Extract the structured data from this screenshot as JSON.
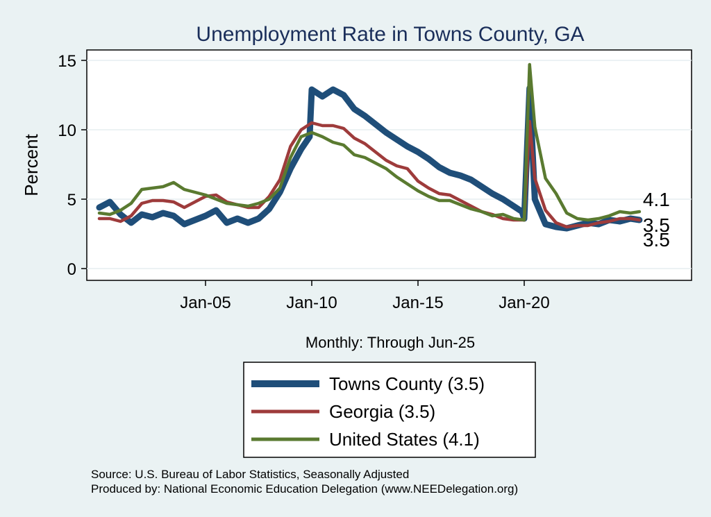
{
  "chart_data": {
    "type": "line",
    "title": "Unemployment Rate in Towns  County, GA",
    "ylabel": "Percent",
    "xlabel": "Monthly: Through Jun-25",
    "ylim": [
      0,
      15
    ],
    "yticks": [
      0,
      5,
      10,
      15
    ],
    "xlim": [
      2000.0,
      2028.0
    ],
    "xticks": [
      {
        "x": 2005.0,
        "label": "Jan-05"
      },
      {
        "x": 2010.0,
        "label": "Jan-10"
      },
      {
        "x": 2015.0,
        "label": "Jan-15"
      },
      {
        "x": 2020.0,
        "label": "Jan-20"
      }
    ],
    "grid": true,
    "legend_position": "bottom",
    "series": [
      {
        "name": "Towns  County (3.5)",
        "color": "#1f4e79",
        "end_label": "3.5",
        "points": [
          [
            2000.0,
            4.4
          ],
          [
            2000.5,
            4.8
          ],
          [
            2001.0,
            3.9
          ],
          [
            2001.5,
            3.3
          ],
          [
            2002.0,
            3.9
          ],
          [
            2002.5,
            3.7
          ],
          [
            2003.0,
            4.0
          ],
          [
            2003.5,
            3.8
          ],
          [
            2004.0,
            3.2
          ],
          [
            2004.5,
            3.5
          ],
          [
            2005.0,
            3.8
          ],
          [
            2005.5,
            4.2
          ],
          [
            2006.0,
            3.3
          ],
          [
            2006.5,
            3.6
          ],
          [
            2007.0,
            3.3
          ],
          [
            2007.5,
            3.6
          ],
          [
            2008.0,
            4.3
          ],
          [
            2008.5,
            5.5
          ],
          [
            2009.0,
            7.2
          ],
          [
            2009.5,
            8.6
          ],
          [
            2009.9,
            9.5
          ],
          [
            2010.0,
            12.9
          ],
          [
            2010.5,
            12.4
          ],
          [
            2011.0,
            12.9
          ],
          [
            2011.5,
            12.5
          ],
          [
            2012.0,
            11.5
          ],
          [
            2012.5,
            11.0
          ],
          [
            2013.0,
            10.4
          ],
          [
            2013.5,
            9.8
          ],
          [
            2014.0,
            9.3
          ],
          [
            2014.5,
            8.8
          ],
          [
            2015.0,
            8.4
          ],
          [
            2015.5,
            7.9
          ],
          [
            2016.0,
            7.3
          ],
          [
            2016.5,
            6.9
          ],
          [
            2017.0,
            6.7
          ],
          [
            2017.5,
            6.4
          ],
          [
            2018.0,
            5.9
          ],
          [
            2018.5,
            5.4
          ],
          [
            2019.0,
            5.0
          ],
          [
            2019.5,
            4.5
          ],
          [
            2019.9,
            4.1
          ],
          [
            2020.0,
            3.6
          ],
          [
            2020.25,
            13.0
          ],
          [
            2020.5,
            5.0
          ],
          [
            2021.0,
            3.2
          ],
          [
            2021.5,
            3.0
          ],
          [
            2022.0,
            2.9
          ],
          [
            2022.5,
            3.1
          ],
          [
            2023.0,
            3.3
          ],
          [
            2023.5,
            3.2
          ],
          [
            2024.0,
            3.5
          ],
          [
            2024.5,
            3.4
          ],
          [
            2025.0,
            3.6
          ],
          [
            2025.42,
            3.5
          ]
        ]
      },
      {
        "name": "Georgia (3.5)",
        "color": "#9e3b3b",
        "end_label": "3.5",
        "points": [
          [
            2000.0,
            3.6
          ],
          [
            2000.5,
            3.6
          ],
          [
            2001.0,
            3.4
          ],
          [
            2001.5,
            3.8
          ],
          [
            2002.0,
            4.7
          ],
          [
            2002.5,
            4.9
          ],
          [
            2003.0,
            4.9
          ],
          [
            2003.5,
            4.8
          ],
          [
            2004.0,
            4.4
          ],
          [
            2004.5,
            4.8
          ],
          [
            2005.0,
            5.2
          ],
          [
            2005.5,
            5.3
          ],
          [
            2006.0,
            4.8
          ],
          [
            2006.5,
            4.6
          ],
          [
            2007.0,
            4.4
          ],
          [
            2007.5,
            4.4
          ],
          [
            2008.0,
            5.2
          ],
          [
            2008.5,
            6.4
          ],
          [
            2009.0,
            8.8
          ],
          [
            2009.5,
            10.0
          ],
          [
            2010.0,
            10.5
          ],
          [
            2010.5,
            10.3
          ],
          [
            2011.0,
            10.3
          ],
          [
            2011.5,
            10.1
          ],
          [
            2012.0,
            9.4
          ],
          [
            2012.5,
            9.0
          ],
          [
            2013.0,
            8.4
          ],
          [
            2013.5,
            7.8
          ],
          [
            2014.0,
            7.4
          ],
          [
            2014.5,
            7.2
          ],
          [
            2015.0,
            6.3
          ],
          [
            2015.5,
            5.8
          ],
          [
            2016.0,
            5.4
          ],
          [
            2016.5,
            5.3
          ],
          [
            2017.0,
            4.9
          ],
          [
            2017.5,
            4.5
          ],
          [
            2018.0,
            4.1
          ],
          [
            2018.5,
            3.9
          ],
          [
            2019.0,
            3.6
          ],
          [
            2019.5,
            3.5
          ],
          [
            2020.0,
            3.5
          ],
          [
            2020.25,
            10.6
          ],
          [
            2020.5,
            6.5
          ],
          [
            2021.0,
            4.2
          ],
          [
            2021.5,
            3.3
          ],
          [
            2022.0,
            3.0
          ],
          [
            2022.5,
            3.1
          ],
          [
            2023.0,
            3.1
          ],
          [
            2023.5,
            3.3
          ],
          [
            2024.0,
            3.4
          ],
          [
            2024.5,
            3.6
          ],
          [
            2025.0,
            3.6
          ],
          [
            2025.42,
            3.5
          ]
        ]
      },
      {
        "name": "United States (4.1)",
        "color": "#5a7a30",
        "end_label": "4.1",
        "points": [
          [
            2000.0,
            4.0
          ],
          [
            2000.5,
            3.9
          ],
          [
            2001.0,
            4.2
          ],
          [
            2001.5,
            4.7
          ],
          [
            2002.0,
            5.7
          ],
          [
            2002.5,
            5.8
          ],
          [
            2003.0,
            5.9
          ],
          [
            2003.5,
            6.2
          ],
          [
            2004.0,
            5.7
          ],
          [
            2004.5,
            5.5
          ],
          [
            2005.0,
            5.3
          ],
          [
            2005.5,
            5.0
          ],
          [
            2006.0,
            4.7
          ],
          [
            2006.5,
            4.6
          ],
          [
            2007.0,
            4.5
          ],
          [
            2007.5,
            4.7
          ],
          [
            2008.0,
            5.0
          ],
          [
            2008.5,
            5.8
          ],
          [
            2009.0,
            8.0
          ],
          [
            2009.5,
            9.5
          ],
          [
            2010.0,
            9.8
          ],
          [
            2010.5,
            9.5
          ],
          [
            2011.0,
            9.1
          ],
          [
            2011.5,
            8.9
          ],
          [
            2012.0,
            8.2
          ],
          [
            2012.5,
            8.0
          ],
          [
            2013.0,
            7.6
          ],
          [
            2013.5,
            7.2
          ],
          [
            2014.0,
            6.6
          ],
          [
            2014.5,
            6.1
          ],
          [
            2015.0,
            5.6
          ],
          [
            2015.5,
            5.2
          ],
          [
            2016.0,
            4.9
          ],
          [
            2016.5,
            4.9
          ],
          [
            2017.0,
            4.6
          ],
          [
            2017.5,
            4.3
          ],
          [
            2018.0,
            4.1
          ],
          [
            2018.5,
            3.8
          ],
          [
            2019.0,
            3.9
          ],
          [
            2019.5,
            3.6
          ],
          [
            2020.0,
            3.5
          ],
          [
            2020.25,
            14.7
          ],
          [
            2020.5,
            10.2
          ],
          [
            2021.0,
            6.5
          ],
          [
            2021.5,
            5.4
          ],
          [
            2022.0,
            4.0
          ],
          [
            2022.5,
            3.6
          ],
          [
            2023.0,
            3.5
          ],
          [
            2023.5,
            3.6
          ],
          [
            2024.0,
            3.8
          ],
          [
            2024.5,
            4.1
          ],
          [
            2025.0,
            4.0
          ],
          [
            2025.42,
            4.1
          ]
        ]
      }
    ]
  },
  "source_note": "Source: U.S. Bureau of Labor Statistics, Seasonally Adjusted",
  "producer_note": "Produced by: National Economic Education Delegation (www.NEEDelegation.org)"
}
